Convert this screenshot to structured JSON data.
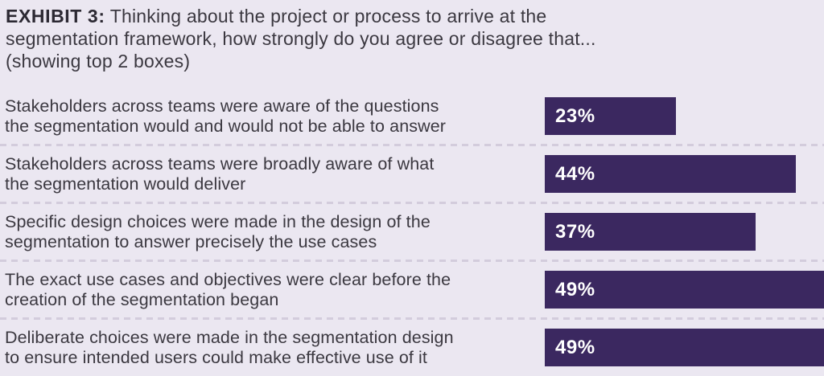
{
  "header": {
    "exhibit_label": "EXHIBIT 3:",
    "line1_rest": " Thinking about the project or process to arrive at the",
    "line2": "segmentation framework, how strongly do you agree or disagree that...",
    "line3": "(showing top 2 boxes)"
  },
  "chart_data": {
    "type": "bar",
    "orientation": "horizontal",
    "title": "EXHIBIT 3: Thinking about the project or process to arrive at the segmentation framework, how strongly do you agree or disagree that... (showing top 2 boxes)",
    "categories": [
      "Stakeholders across teams were aware of the questions the segmentation would and would not be able to answer",
      "Stakeholders across teams were broadly aware of what the segmentation would deliver",
      "Specific design choices were made in the design of the segmentation to answer precisely the use cases",
      "The exact use cases and objectives were clear before the creation of the segmentation began",
      "Deliberate choices were made in the segmentation design to ensure intended users could make effective use of it"
    ],
    "values": [
      23,
      44,
      37,
      49,
      49
    ],
    "value_labels": [
      "23%",
      "44%",
      "37%",
      "49%",
      "49%"
    ],
    "unit": "percent",
    "xlim": [
      0,
      49
    ],
    "grid": false,
    "legend": false,
    "bar_color": "#3b2860",
    "value_label_color": "#ffffff",
    "background_color": "#ebe7f1",
    "divider_color": "#d3ccdc",
    "text_color": "#3b3840"
  },
  "rows": [
    {
      "line1": "Stakeholders across teams were aware of the questions",
      "line2": "the segmentation would and would not be able to answer",
      "value_label": "23%"
    },
    {
      "line1": "Stakeholders across teams were broadly aware of what",
      "line2": "the segmentation would deliver",
      "value_label": "44%"
    },
    {
      "line1": "Specific design choices were made in the design of the",
      "line2": "segmentation to answer precisely the use cases",
      "value_label": "37%"
    },
    {
      "line1": "The exact use cases and objectives were clear before the",
      "line2": "creation of the segmentation began",
      "value_label": "49%"
    },
    {
      "line1": "Deliberate choices were made in the segmentation design",
      "line2": "to ensure intended users could make effective use of it",
      "value_label": "49%"
    }
  ]
}
